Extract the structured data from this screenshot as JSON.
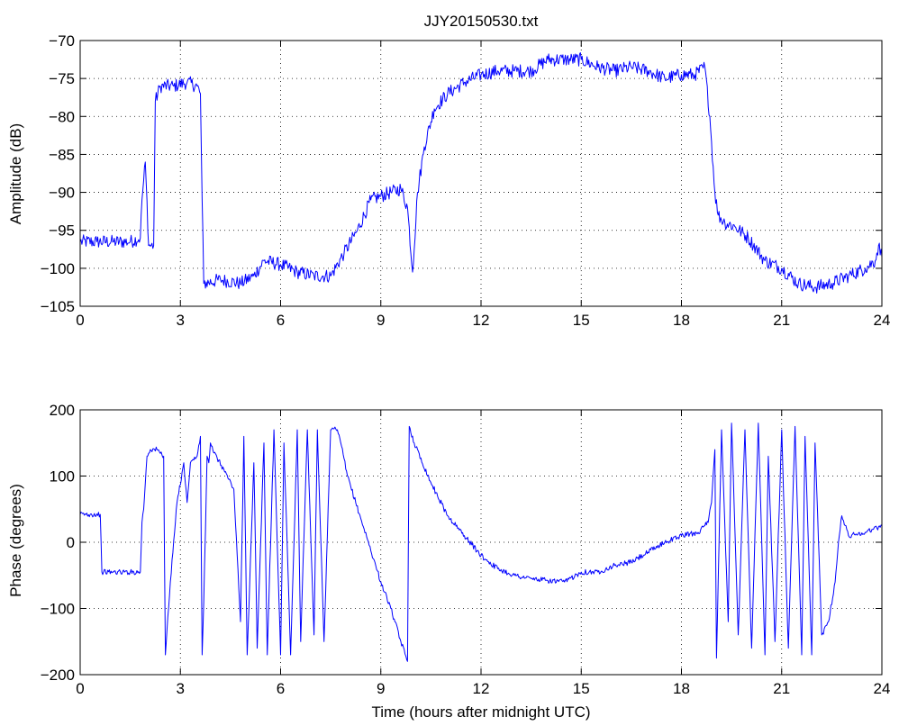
{
  "chart_data": [
    {
      "type": "line",
      "title": "JJY20150530.txt",
      "xlabel": "",
      "ylabel": "Amplitude (dB)",
      "xlim": [
        0,
        24
      ],
      "ylim": [
        -105,
        -70
      ],
      "xticks": [
        "0",
        "3",
        "6",
        "9",
        "12",
        "15",
        "18",
        "21",
        "24"
      ],
      "yticks": [
        "-70",
        "-75",
        "-80",
        "-85",
        "-90",
        "-95",
        "-100",
        "-105"
      ],
      "grid": true,
      "line_color": "#0000ff",
      "series": [
        {
          "x": [
            0,
            0.5,
            1.0,
            1.5,
            1.8,
            1.85,
            1.95,
            2.05,
            2.2,
            2.25,
            2.4,
            2.8,
            3.2,
            3.5,
            3.6,
            3.65,
            3.7,
            4.2,
            4.8,
            5.2,
            5.5,
            6.0,
            6.5,
            7.0,
            7.5,
            7.9,
            8.3,
            8.7,
            9.0,
            9.3,
            9.6,
            9.8,
            9.95,
            10.1,
            10.3,
            10.6,
            11.0,
            11.5,
            12.0,
            12.5,
            13.0,
            13.5,
            14.0,
            14.5,
            15.0,
            15.5,
            16.0,
            16.5,
            17.0,
            17.5,
            18.0,
            18.4,
            18.7,
            18.85,
            19.0,
            19.1,
            19.3,
            19.6,
            20.0,
            20.5,
            21.0,
            21.5,
            22.0,
            22.5,
            23.0,
            23.5,
            23.8,
            23.9,
            24.0
          ],
          "y": [
            -96.5,
            -96.5,
            -96.5,
            -96.5,
            -96,
            -91,
            -86,
            -97,
            -97,
            -78,
            -76,
            -76,
            -75.5,
            -76,
            -77,
            -91,
            -102,
            -101.5,
            -102,
            -101,
            -99,
            -99.5,
            -100.5,
            -101,
            -101,
            -98,
            -95,
            -91,
            -90.5,
            -90,
            -89.5,
            -92,
            -100.5,
            -90,
            -84,
            -79,
            -77,
            -75.5,
            -74.5,
            -74,
            -74,
            -74,
            -72.5,
            -72.5,
            -72.5,
            -73.5,
            -74,
            -73.5,
            -74,
            -75,
            -74.5,
            -74.5,
            -73.5,
            -80,
            -90,
            -93,
            -94,
            -94.5,
            -96,
            -99,
            -100,
            -102,
            -102.5,
            -102,
            -101,
            -100,
            -99,
            -97,
            -98.5
          ]
        }
      ]
    },
    {
      "type": "line",
      "title": "",
      "xlabel": "Time (hours after midnight UTC)",
      "ylabel": "Phase (degrees)",
      "xlim": [
        0,
        24
      ],
      "ylim": [
        -200,
        200
      ],
      "xticks": [
        "0",
        "3",
        "6",
        "9",
        "12",
        "15",
        "18",
        "21",
        "24"
      ],
      "yticks": [
        "200",
        "100",
        "0",
        "-100",
        "-200"
      ],
      "grid": true,
      "line_color": "#0000ff",
      "series": [
        {
          "x": [
            0,
            0.3,
            0.6,
            0.65,
            0.7,
            1.0,
            1.5,
            1.8,
            1.85,
            1.9,
            2.0,
            2.1,
            2.3,
            2.5,
            2.55,
            2.7,
            2.9,
            3.1,
            3.2,
            3.3,
            3.5,
            3.6,
            3.65,
            3.7,
            3.8,
            3.85,
            3.9,
            4.0,
            4.3,
            4.6,
            4.8,
            4.9,
            5.0,
            5.2,
            5.3,
            5.5,
            5.6,
            5.8,
            6.0,
            6.1,
            6.3,
            6.5,
            6.6,
            6.8,
            7.0,
            7.1,
            7.3,
            7.5,
            7.7,
            7.8,
            8.0,
            8.5,
            9.0,
            9.3,
            9.6,
            9.8,
            9.85,
            10.0,
            10.5,
            11.0,
            11.5,
            12.0,
            12.5,
            13.0,
            13.5,
            14.0,
            14.5,
            15.0,
            15.5,
            16.0,
            16.5,
            17.0,
            17.5,
            18.0,
            18.5,
            18.8,
            18.9,
            19.0,
            19.05,
            19.2,
            19.4,
            19.5,
            19.7,
            19.9,
            20.1,
            20.3,
            20.5,
            20.6,
            20.8,
            21.0,
            21.2,
            21.4,
            21.6,
            21.7,
            21.9,
            22.0,
            22.2,
            22.4,
            22.6,
            22.7,
            22.8,
            23.0,
            23.5,
            24.0
          ],
          "y": [
            42,
            42,
            42,
            -45,
            -45,
            -45,
            -45,
            -45,
            30,
            50,
            130,
            140,
            140,
            130,
            -170,
            -60,
            60,
            120,
            60,
            120,
            130,
            160,
            -170,
            -90,
            130,
            120,
            150,
            135,
            110,
            80,
            -120,
            160,
            -170,
            120,
            -160,
            150,
            -170,
            170,
            -170,
            150,
            -170,
            170,
            -150,
            170,
            -140,
            170,
            -150,
            170,
            170,
            150,
            100,
            20,
            -60,
            -100,
            -150,
            -180,
            175,
            150,
            90,
            40,
            10,
            -20,
            -40,
            -50,
            -55,
            -58,
            -60,
            -45,
            -45,
            -35,
            -30,
            -15,
            0,
            10,
            15,
            30,
            60,
            140,
            -175,
            170,
            -120,
            180,
            -140,
            170,
            -160,
            180,
            -170,
            130,
            -150,
            170,
            -160,
            175,
            -170,
            160,
            -170,
            150,
            -140,
            -120,
            -60,
            0,
            40,
            10,
            15,
            25
          ]
        }
      ]
    }
  ]
}
